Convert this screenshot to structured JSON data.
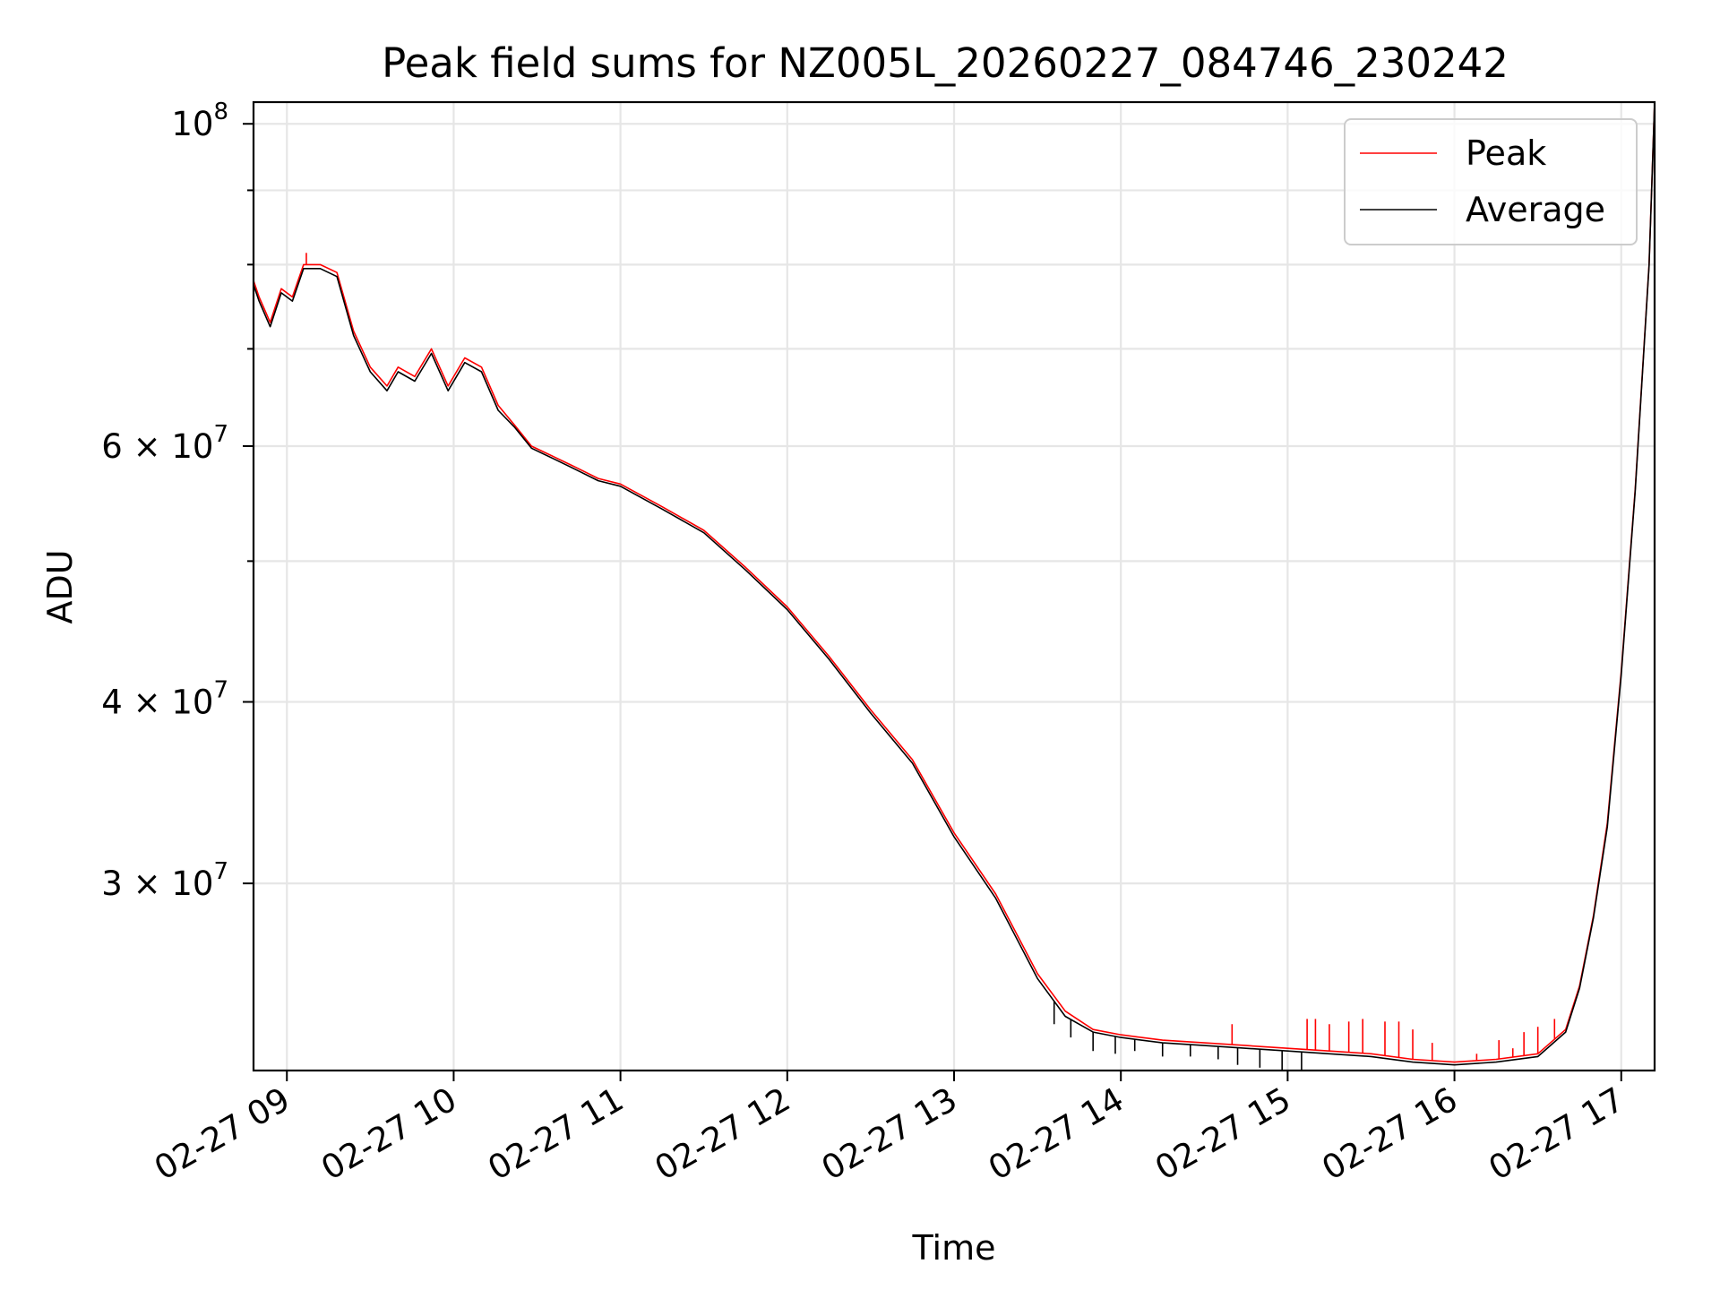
{
  "chart_data": {
    "type": "line",
    "title": "Peak field sums for NZ005L_20260227_084746_230242",
    "xlabel": "Time",
    "ylabel": "ADU",
    "yscale": "log",
    "grid": true,
    "legend_position": "top-right",
    "x_ticks": [
      "02-27 09",
      "02-27 10",
      "02-27 11",
      "02-27 12",
      "02-27 13",
      "02-27 14",
      "02-27 15",
      "02-27 16",
      "02-27 17"
    ],
    "xlim": [
      "2026-02-27 08:48",
      "2026-02-27 17:12"
    ],
    "y_major_ticks": [
      {
        "value": 100000000,
        "mantissa": "",
        "base": "10",
        "exp": "8"
      },
      {
        "value": 60000000,
        "mantissa": "6 × ",
        "base": "10",
        "exp": "7"
      },
      {
        "value": 40000000,
        "mantissa": "4 × ",
        "base": "10",
        "exp": "7"
      },
      {
        "value": 30000000,
        "mantissa": "3 × ",
        "base": "10",
        "exp": "7"
      }
    ],
    "y_minor_gridlines": [
      90000000,
      80000000,
      70000000,
      50000000
    ],
    "ylim": [
      22300000,
      103500000
    ],
    "series": [
      {
        "name": "Peak",
        "color": "#ff0000",
        "x": [
          "08:48",
          "08:50",
          "08:54",
          "08:58",
          "09:02",
          "09:06",
          "09:12",
          "09:18",
          "09:24",
          "09:30",
          "09:36",
          "09:40",
          "09:46",
          "09:52",
          "09:58",
          "10:04",
          "10:10",
          "10:16",
          "10:22",
          "10:28",
          "10:36",
          "10:44",
          "10:52",
          "11:00",
          "11:15",
          "11:30",
          "11:45",
          "12:00",
          "12:15",
          "12:30",
          "12:45",
          "13:00",
          "13:15",
          "13:30",
          "13:40",
          "13:50",
          "14:00",
          "14:15",
          "14:30",
          "14:45",
          "15:00",
          "15:15",
          "15:30",
          "15:45",
          "16:00",
          "16:15",
          "16:30",
          "16:40",
          "16:45",
          "16:50",
          "16:55",
          "17:00",
          "17:05",
          "17:10",
          "17:12"
        ],
        "y": [
          78000000,
          76000000,
          73000000,
          77000000,
          76000000,
          80000000,
          80000000,
          79000000,
          72000000,
          68000000,
          66000000,
          68000000,
          67000000,
          70000000,
          66000000,
          69000000,
          68000000,
          64000000,
          62000000,
          60000000,
          59000000,
          58000000,
          57000000,
          56500000,
          54500000,
          52500000,
          49500000,
          46500000,
          43000000,
          39500000,
          36500000,
          32500000,
          29500000,
          26000000,
          24500000,
          23800000,
          23600000,
          23400000,
          23300000,
          23200000,
          23100000,
          23000000,
          22900000,
          22700000,
          22600000,
          22700000,
          22900000,
          23800000,
          25500000,
          28500000,
          33000000,
          42000000,
          56000000,
          80000000,
          103500000
        ],
        "spikes": [
          {
            "x": "08:48",
            "y": 81000000
          },
          {
            "x": "09:07",
            "y": 81500000
          },
          {
            "x": "14:40",
            "y": 24000000
          },
          {
            "x": "15:07",
            "y": 24200000
          },
          {
            "x": "15:10",
            "y": 24200000
          },
          {
            "x": "15:15",
            "y": 24000000
          },
          {
            "x": "15:22",
            "y": 24100000
          },
          {
            "x": "15:27",
            "y": 24200000
          },
          {
            "x": "15:35",
            "y": 24100000
          },
          {
            "x": "15:40",
            "y": 24100000
          },
          {
            "x": "15:45",
            "y": 23800000
          },
          {
            "x": "15:52",
            "y": 23300000
          },
          {
            "x": "16:08",
            "y": 22900000
          },
          {
            "x": "16:16",
            "y": 23400000
          },
          {
            "x": "16:21",
            "y": 23100000
          },
          {
            "x": "16:25",
            "y": 23700000
          },
          {
            "x": "16:30",
            "y": 23900000
          },
          {
            "x": "16:36",
            "y": 24200000
          }
        ]
      },
      {
        "name": "Average",
        "color": "#000000",
        "x": [
          "08:48",
          "08:50",
          "08:54",
          "08:58",
          "09:02",
          "09:06",
          "09:12",
          "09:18",
          "09:24",
          "09:30",
          "09:36",
          "09:40",
          "09:46",
          "09:52",
          "09:58",
          "10:04",
          "10:10",
          "10:16",
          "10:22",
          "10:28",
          "10:36",
          "10:44",
          "10:52",
          "11:00",
          "11:15",
          "11:30",
          "11:45",
          "12:00",
          "12:15",
          "12:30",
          "12:45",
          "13:00",
          "13:15",
          "13:30",
          "13:40",
          "13:50",
          "14:00",
          "14:15",
          "14:30",
          "14:45",
          "15:00",
          "15:15",
          "15:30",
          "15:45",
          "16:00",
          "16:15",
          "16:30",
          "16:40",
          "16:45",
          "16:50",
          "16:55",
          "17:00",
          "17:05",
          "17:10",
          "17:12"
        ],
        "y": [
          77500000,
          75500000,
          72500000,
          76500000,
          75500000,
          79500000,
          79500000,
          78500000,
          71500000,
          67500000,
          65500000,
          67500000,
          66500000,
          69500000,
          65500000,
          68500000,
          67500000,
          63500000,
          61800000,
          59800000,
          58800000,
          57800000,
          56800000,
          56300000,
          54300000,
          52300000,
          49300000,
          46300000,
          42800000,
          39300000,
          36300000,
          32300000,
          29300000,
          25800000,
          24300000,
          23700000,
          23500000,
          23300000,
          23200000,
          23100000,
          23000000,
          22900000,
          22800000,
          22600000,
          22500000,
          22600000,
          22800000,
          23700000,
          25400000,
          28400000,
          32800000,
          41800000,
          55800000,
          79800000,
          103500000
        ],
        "dips": [
          {
            "x": "13:36",
            "y": 24000000
          },
          {
            "x": "13:42",
            "y": 23500000
          },
          {
            "x": "13:50",
            "y": 23000000
          },
          {
            "x": "13:58",
            "y": 22900000
          },
          {
            "x": "14:05",
            "y": 23000000
          },
          {
            "x": "14:15",
            "y": 22800000
          },
          {
            "x": "14:25",
            "y": 22800000
          },
          {
            "x": "14:35",
            "y": 22700000
          },
          {
            "x": "14:42",
            "y": 22500000
          },
          {
            "x": "14:50",
            "y": 22400000
          },
          {
            "x": "14:58",
            "y": 22300000
          },
          {
            "x": "15:05",
            "y": 22300000
          }
        ]
      }
    ]
  }
}
